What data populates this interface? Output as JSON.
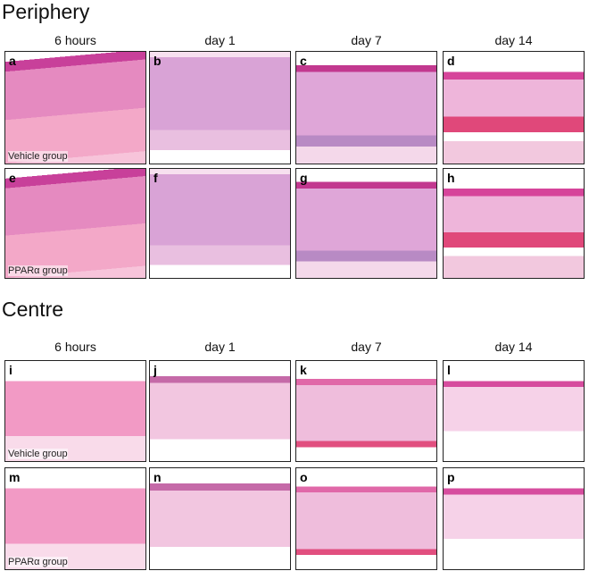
{
  "sections": [
    {
      "title": "Periphery",
      "columns": [
        "6 hours",
        "day 1",
        "day 7",
        "day 14"
      ],
      "rows": [
        {
          "group": "Vehicle group",
          "panels": [
            "a",
            "b",
            "c",
            "d"
          ]
        },
        {
          "group": "PPARα group",
          "panels": [
            "e",
            "f",
            "g",
            "h"
          ]
        }
      ]
    },
    {
      "title": "Centre",
      "columns": [
        "6 hours",
        "day 1",
        "day 7",
        "day 14"
      ],
      "rows": [
        {
          "group": "Vehicle group",
          "panels": [
            "i",
            "j",
            "k",
            "l"
          ]
        },
        {
          "group": "PPARα group",
          "panels": [
            "m",
            "n",
            "o",
            "p"
          ]
        }
      ]
    }
  ]
}
